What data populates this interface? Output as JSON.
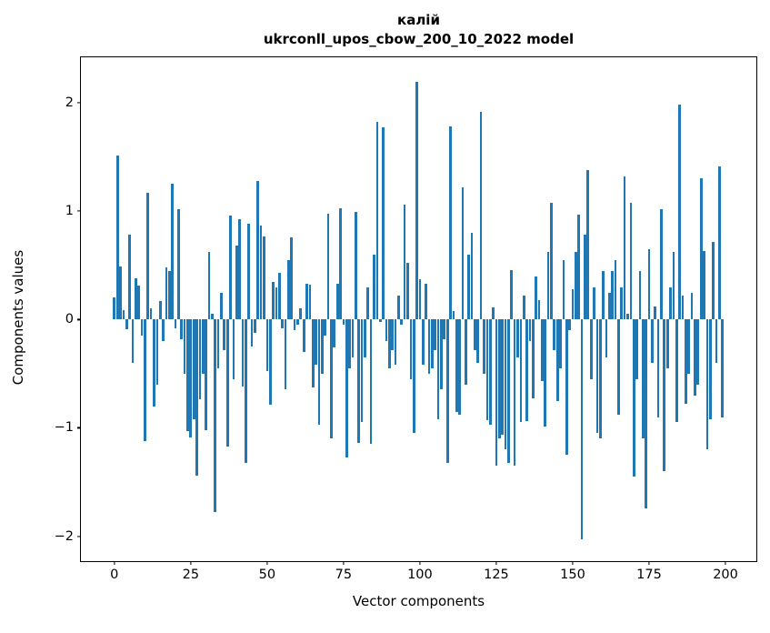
{
  "figure": {
    "title_line1": "калій",
    "title_line2": "ukrconll_upos_cbow_200_10_2022 model"
  },
  "chart_data": {
    "type": "bar",
    "title": "калій\nukrconll_upos_cbow_200_10_2022 model",
    "xlabel": "Vector components",
    "ylabel": "Components values",
    "legend": null,
    "grid": false,
    "bar_color": "#1f77b4",
    "bar_width": 0.8,
    "x_start": 0,
    "xlim": [
      -10.95,
      210.1
    ],
    "ylim": [
      -2.23,
      2.42
    ],
    "xticks": [
      0,
      25,
      50,
      75,
      100,
      125,
      150,
      175,
      200
    ],
    "xtick_labels": [
      "0",
      "25",
      "50",
      "75",
      "100",
      "125",
      "150",
      "175",
      "200"
    ],
    "yticks": [
      -2,
      -1,
      0,
      1,
      2
    ],
    "ytick_labels": [
      "−2",
      "−1",
      "0",
      "1",
      "2"
    ],
    "values": [
      0.2,
      1.51,
      0.49,
      0.09,
      -0.09,
      0.78,
      -0.4,
      0.38,
      0.31,
      -0.15,
      -1.12,
      1.17,
      0.1,
      -0.8,
      -0.6,
      0.17,
      -0.2,
      0.48,
      0.45,
      1.25,
      -0.08,
      1.02,
      -0.18,
      -0.5,
      -1.03,
      -1.09,
      -0.92,
      -1.44,
      -0.74,
      -0.5,
      -1.02,
      0.62,
      0.05,
      -1.78,
      -0.45,
      0.25,
      -0.28,
      -1.17,
      0.96,
      -0.55,
      0.68,
      0.93,
      -0.62,
      -1.32,
      0.88,
      -0.25,
      -0.12,
      1.28,
      0.87,
      0.77,
      -0.48,
      -0.79,
      0.35,
      0.3,
      0.43,
      -0.08,
      -0.64,
      0.55,
      0.76,
      -0.1,
      -0.05,
      0.1,
      -0.3,
      0.33,
      0.32,
      -0.63,
      -0.42,
      -0.97,
      -0.5,
      -0.15,
      0.98,
      -1.1,
      -0.26,
      0.33,
      1.03,
      -0.05,
      -1.27,
      -0.45,
      -0.35,
      0.99,
      -1.14,
      -0.95,
      -0.35,
      0.3,
      -1.15,
      0.6,
      1.82,
      -0.02,
      1.77,
      -0.2,
      -0.45,
      -0.28,
      -0.42,
      0.22,
      -0.05,
      1.06,
      0.52,
      -0.55,
      -1.05,
      2.19,
      0.37,
      -0.42,
      0.33,
      -0.5,
      -0.45,
      -0.28,
      -0.92,
      -0.64,
      -0.18,
      -1.32,
      1.78,
      0.08,
      -0.85,
      -0.88,
      1.22,
      -0.6,
      0.6,
      0.8,
      -0.28,
      -0.4,
      1.92,
      -0.5,
      -0.93,
      -0.97,
      0.11,
      -1.35,
      -1.1,
      -1.06,
      -1.2,
      -1.32,
      0.46,
      -1.35,
      -0.35,
      -0.95,
      0.22,
      -0.94,
      -0.2,
      -0.73,
      0.4,
      0.18,
      -0.57,
      -0.99,
      0.62,
      1.08,
      -0.28,
      -0.75,
      -0.45,
      0.55,
      -1.25,
      -0.1,
      0.28,
      0.62,
      0.97,
      -2.03,
      0.78,
      1.38,
      -0.55,
      0.3,
      -1.05,
      -1.1,
      0.45,
      -0.35,
      0.25,
      0.45,
      0.55,
      -0.88,
      0.3,
      1.32,
      0.05,
      1.08,
      -1.45,
      -0.55,
      0.45,
      -1.1,
      -1.74,
      0.65,
      -0.4,
      0.12,
      -0.9,
      1.02,
      -1.4,
      -0.45,
      0.3,
      0.62,
      -0.95,
      1.98,
      0.22,
      -0.78,
      -0.5,
      0.25,
      -0.7,
      -0.6,
      1.3,
      0.63,
      -1.2,
      -0.92,
      0.72,
      -0.4,
      1.41,
      -0.9
    ]
  }
}
